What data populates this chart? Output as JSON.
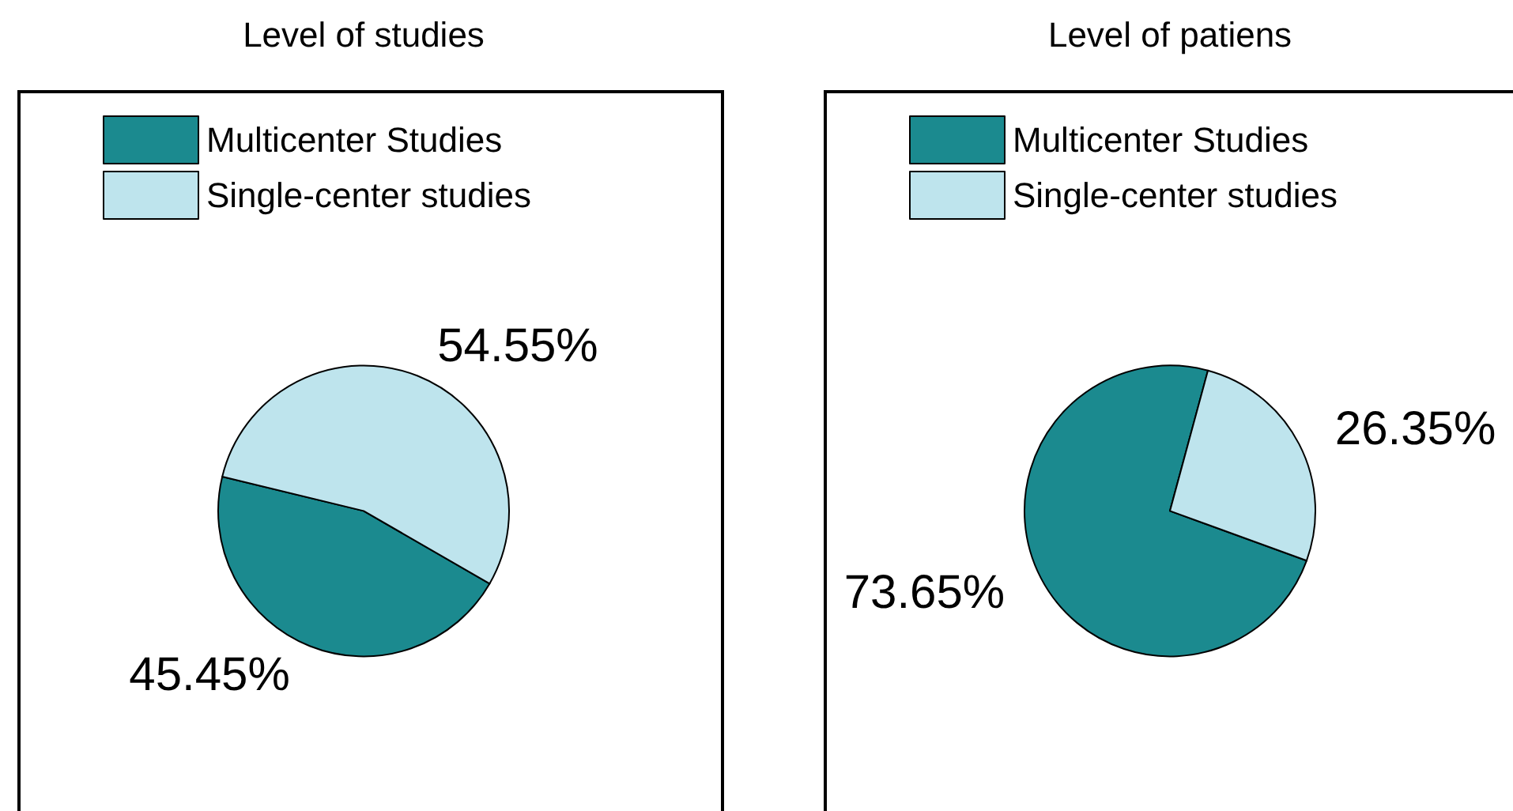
{
  "chart_data": [
    {
      "type": "pie",
      "title": "Level of studies",
      "categories": [
        "Multicenter Studies",
        "Single-center studies"
      ],
      "values": [
        45.45,
        54.55
      ],
      "colors": [
        "#1b8a8f",
        "#bee4ed"
      ],
      "value_labels": [
        "45.45%",
        "54.55%"
      ],
      "legend": "top"
    },
    {
      "type": "pie",
      "title": "Level of patiens",
      "categories": [
        "Multicenter Studies",
        "Single-center studies"
      ],
      "values": [
        73.65,
        26.35
      ],
      "colors": [
        "#1b8a8f",
        "#bee4ed"
      ],
      "value_labels": [
        "73.65%",
        "26.35%"
      ],
      "legend": "top"
    }
  ]
}
